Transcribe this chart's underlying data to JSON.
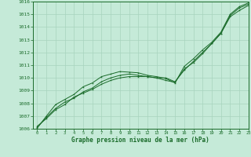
{
  "title": "Graphe pression niveau de la mer (hPa)",
  "background_color": "#c5ead8",
  "grid_color": "#a8d4be",
  "line_color": "#1a6b2a",
  "xlim": [
    -0.5,
    23
  ],
  "ylim": [
    1006,
    1016
  ],
  "xticks": [
    0,
    1,
    2,
    3,
    4,
    5,
    6,
    7,
    8,
    9,
    10,
    11,
    12,
    13,
    14,
    15,
    16,
    17,
    18,
    19,
    20,
    21,
    22,
    23
  ],
  "yticks": [
    1006,
    1007,
    1008,
    1009,
    1010,
    1011,
    1012,
    1013,
    1014,
    1015,
    1016
  ],
  "line1": {
    "x": [
      0,
      1,
      2,
      3,
      4,
      5,
      6,
      7,
      8,
      9,
      10,
      11,
      12,
      13,
      14,
      15,
      16,
      17,
      18,
      19,
      20,
      21,
      22,
      23
    ],
    "y": [
      1006.2,
      1006.8,
      1007.5,
      1007.9,
      1008.5,
      1008.8,
      1009.1,
      1009.5,
      1009.8,
      1010.0,
      1010.1,
      1010.1,
      1010.1,
      1010.0,
      1010.0,
      1009.7,
      1010.6,
      1011.3,
      1012.0,
      1012.7,
      1013.5,
      1014.8,
      1015.3,
      1015.7
    ]
  },
  "line2": {
    "x": [
      0,
      1,
      2,
      3,
      4,
      5,
      6,
      7,
      8,
      9,
      10,
      11,
      12,
      13,
      14,
      15,
      16,
      17,
      18,
      19,
      20,
      21,
      22,
      23
    ],
    "y": [
      1006.1,
      1006.9,
      1007.6,
      1008.1,
      1008.4,
      1008.9,
      1009.2,
      1009.7,
      1010.0,
      1010.2,
      1010.3,
      1010.2,
      1010.1,
      1010.0,
      1009.8,
      1009.65,
      1010.7,
      1011.2,
      1011.9,
      1012.7,
      1013.5,
      1014.9,
      1015.5,
      1015.8
    ]
  },
  "line3": {
    "x": [
      0,
      1,
      2,
      3,
      4,
      5,
      6,
      7,
      8,
      9,
      10,
      11,
      12,
      13,
      14,
      15,
      16,
      17,
      18,
      19,
      20,
      21,
      22,
      23
    ],
    "y": [
      1006.05,
      1007.0,
      1007.9,
      1008.3,
      1008.7,
      1009.3,
      1009.6,
      1010.1,
      1010.3,
      1010.5,
      1010.45,
      1010.4,
      1010.2,
      1010.1,
      1009.95,
      1009.6,
      1010.9,
      1011.5,
      1012.2,
      1012.8,
      1013.6,
      1015.0,
      1015.6,
      1015.9
    ]
  }
}
